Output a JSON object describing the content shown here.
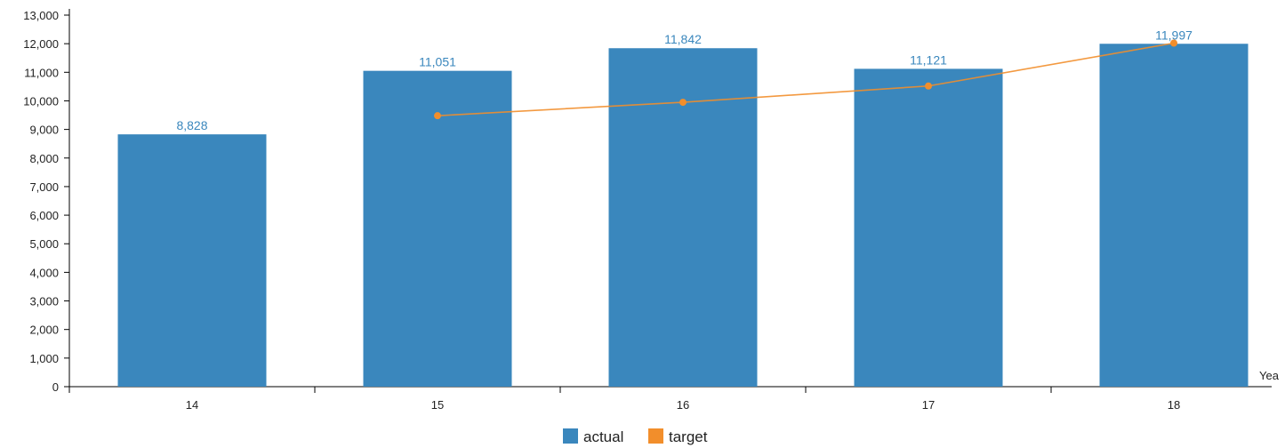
{
  "chart_data": {
    "type": "bar",
    "categories": [
      "14",
      "15",
      "16",
      "17",
      "18"
    ],
    "series": [
      {
        "name": "actual",
        "type": "bar",
        "values": [
          8828,
          11051,
          11842,
          11121,
          11997
        ],
        "labels": [
          "8,828",
          "11,051",
          "11,842",
          "11,121",
          "11,997"
        ],
        "color": "#3a87bd"
      },
      {
        "name": "target",
        "type": "line",
        "values": [
          null,
          9480,
          9950,
          10520,
          12020
        ],
        "color": "#f28e2b"
      }
    ],
    "xlabel": "Yea",
    "ylabel": "",
    "ylim": [
      0,
      13000
    ],
    "yticks": [
      "0",
      "1,000",
      "2,000",
      "3,000",
      "4,000",
      "5,000",
      "6,000",
      "7,000",
      "8,000",
      "9,000",
      "10,000",
      "11,000",
      "12,000",
      "13,000"
    ],
    "legend": {
      "position": "bottom-center",
      "entries": [
        "actual",
        "target"
      ]
    },
    "grid": false
  }
}
